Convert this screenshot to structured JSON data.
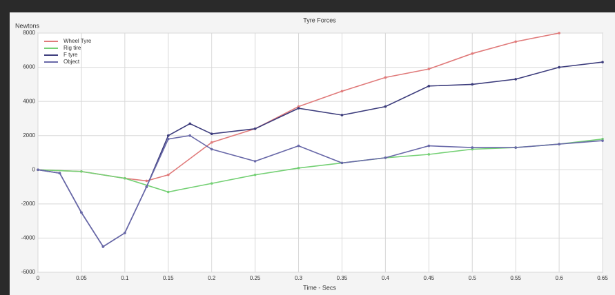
{
  "chart_data": {
    "type": "line",
    "title": "Tyre Forces",
    "y_label": "Newtons",
    "x_label": "Time - Secs",
    "xlim": [
      0,
      0.65
    ],
    "xticks": [
      0,
      0.05,
      0.1,
      0.15,
      0.2,
      0.25,
      0.3,
      0.35,
      0.4,
      0.45,
      0.5,
      0.55,
      0.6,
      0.65
    ],
    "ylim": [
      -6000,
      8000
    ],
    "yticks": [
      -6000,
      -4000,
      -2000,
      0,
      2000,
      4000,
      6000,
      8000
    ],
    "grid": true,
    "series": [
      {
        "name": "Wheel Tyre",
        "color": "#e07a7a",
        "x": [
          0,
          0.05,
          0.1,
          0.125,
          0.15,
          0.2,
          0.25,
          0.3,
          0.35,
          0.4,
          0.45,
          0.5,
          0.55,
          0.6
        ],
        "values": [
          0,
          -100,
          -500,
          -650,
          -300,
          1600,
          2400,
          3700,
          4600,
          5400,
          5900,
          6800,
          7500,
          8000
        ]
      },
      {
        "name": "Rig tire",
        "color": "#74d074",
        "x": [
          0,
          0.05,
          0.1,
          0.15,
          0.2,
          0.25,
          0.3,
          0.35,
          0.4,
          0.45,
          0.5,
          0.55,
          0.6,
          0.65
        ],
        "values": [
          0,
          -100,
          -500,
          -1300,
          -800,
          -300,
          100,
          400,
          700,
          900,
          1200,
          1300,
          1500,
          1800
        ]
      },
      {
        "name": "F tyre",
        "color": "#3c3c7c",
        "x": [
          0,
          0.025,
          0.05,
          0.075,
          0.1,
          0.125,
          0.15,
          0.175,
          0.2,
          0.25,
          0.3,
          0.35,
          0.4,
          0.45,
          0.5,
          0.55,
          0.6,
          0.65
        ],
        "values": [
          0,
          -200,
          -2500,
          -4500,
          -3700,
          -1000,
          2000,
          2700,
          2100,
          2400,
          3600,
          3200,
          3700,
          4900,
          5000,
          5300,
          6000,
          6300
        ]
      },
      {
        "name": "Object",
        "color": "#6868a8",
        "x": [
          0,
          0.025,
          0.05,
          0.075,
          0.1,
          0.125,
          0.15,
          0.175,
          0.2,
          0.25,
          0.3,
          0.35,
          0.4,
          0.45,
          0.5,
          0.55,
          0.6,
          0.65
        ],
        "values": [
          0,
          -200,
          -2500,
          -4500,
          -3700,
          -1000,
          1800,
          2000,
          1200,
          500,
          1400,
          400,
          700,
          1400,
          1300,
          1300,
          1500,
          1700
        ]
      }
    ]
  }
}
